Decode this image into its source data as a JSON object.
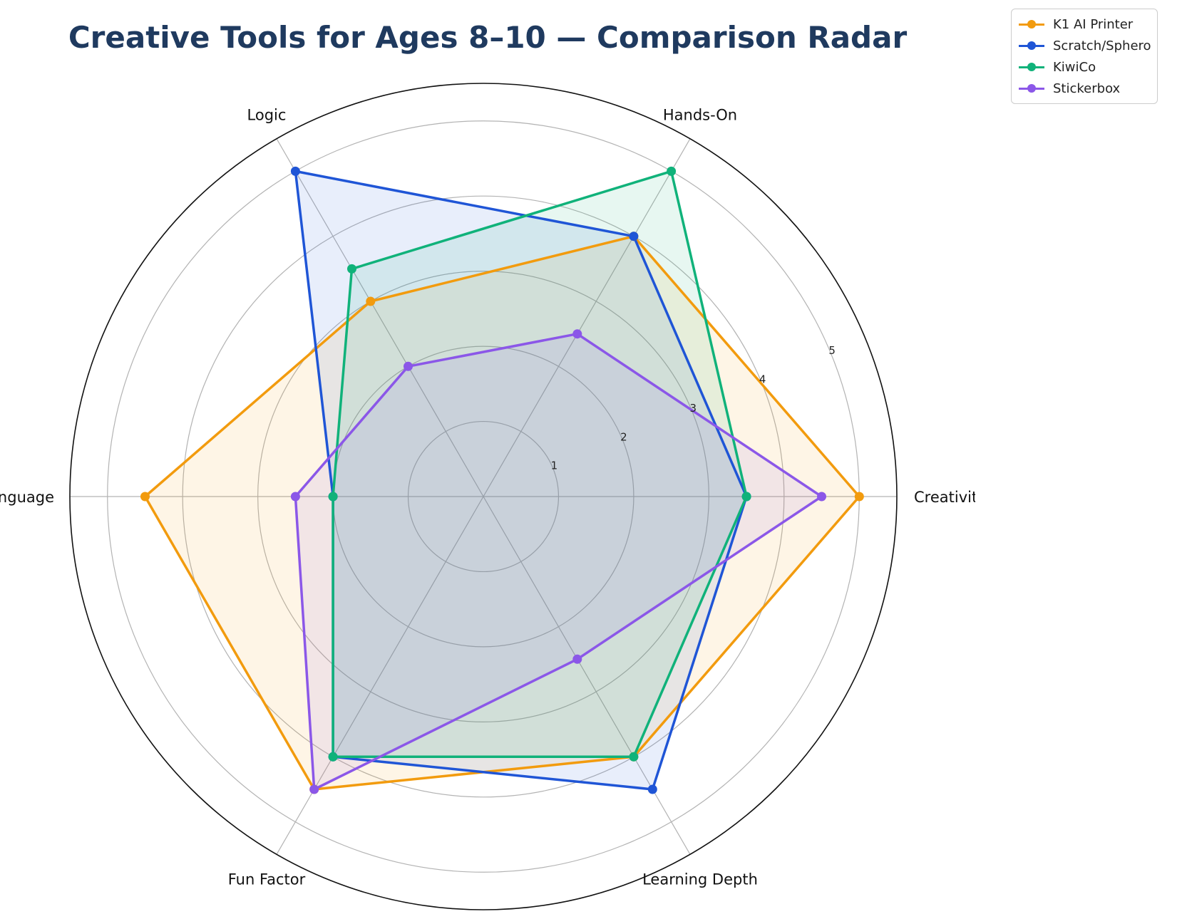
{
  "chart_data": {
    "type": "radar",
    "title": "Creative Tools for Ages 8–10 — Comparison Radar",
    "axes": [
      "Creativity",
      "Hands-On",
      "Logic",
      "Language",
      "Fun Factor",
      "Learning Depth"
    ],
    "rlim": [
      0,
      5.5
    ],
    "rticks": [
      "1",
      "2",
      "3",
      "4",
      "5"
    ],
    "grid": true,
    "legend_position": "top-right",
    "series": [
      {
        "name": "K1 AI Printer",
        "color": "#f29b0e",
        "values": [
          5.0,
          4.0,
          3.0,
          4.5,
          4.5,
          4.0
        ]
      },
      {
        "name": "Scratch/Sphero",
        "color": "#1f55d6",
        "values": [
          3.5,
          4.0,
          5.0,
          2.0,
          4.0,
          4.5
        ]
      },
      {
        "name": "KiwiCo",
        "color": "#10b27a",
        "values": [
          3.5,
          5.0,
          3.5,
          2.0,
          4.0,
          4.0
        ]
      },
      {
        "name": "Stickerbox",
        "color": "#8b57e8",
        "values": [
          4.5,
          2.5,
          2.0,
          2.5,
          4.5,
          2.5
        ]
      }
    ]
  }
}
